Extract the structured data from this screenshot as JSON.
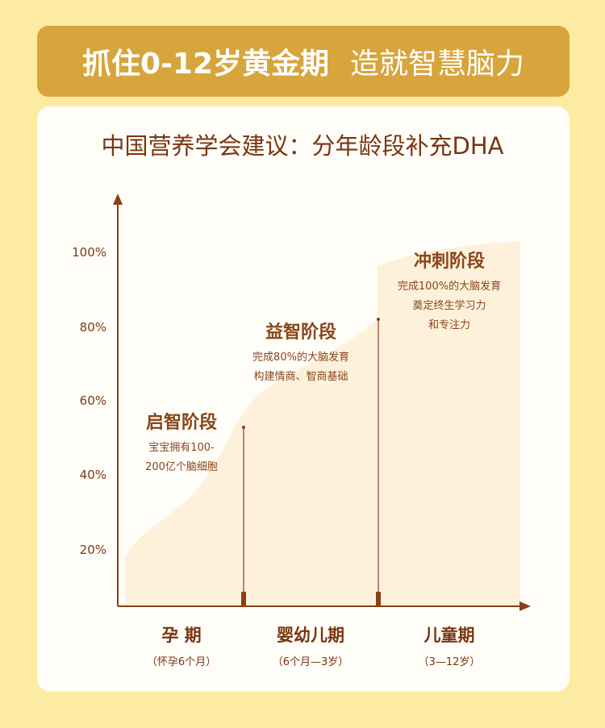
{
  "header": {
    "title_bold": "抓住0-12岁黄金期",
    "title_light": "造就智慧脑力"
  },
  "subtitle": "中国营养学会建议：分年龄段补充DHA",
  "colors": {
    "background": "#fdeba2",
    "header": "#d7a53c",
    "text": "#7a3510",
    "area": "#fdf1dc"
  },
  "chart_data": {
    "type": "area",
    "y_ticks": [
      "100%",
      "80%",
      "60%",
      "40%",
      "20%"
    ],
    "categories": [
      {
        "name": "孕 期",
        "sub": "（怀孕6个月）"
      },
      {
        "name": "婴幼儿期",
        "sub": "（6个月—3岁）"
      },
      {
        "name": "儿童期",
        "sub": "（3—12岁）"
      }
    ],
    "stages": [
      {
        "title": "启智阶段",
        "lines": [
          "宝宝拥有100-",
          "200亿个脑细胞"
        ]
      },
      {
        "title": "益智阶段",
        "lines": [
          "完成80%的大脑发育",
          "构建情商、智商基础"
        ]
      },
      {
        "title": "冲刺阶段",
        "lines": [
          "完成100%的大脑发育",
          "奠定终生学习力",
          "和专注力"
        ]
      }
    ]
  }
}
